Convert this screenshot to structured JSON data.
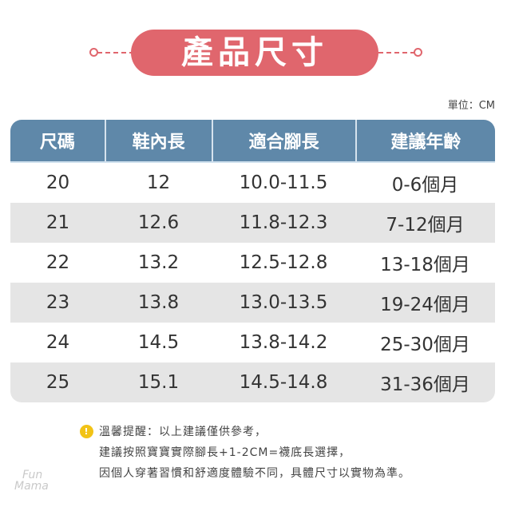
{
  "title": "產品尺寸",
  "unit": "單位：CM",
  "colors": {
    "title": "#e0666d",
    "header": "#5f88a9",
    "alt_row": "#e5e5e5",
    "warning_icon": "#f2c316"
  },
  "table": {
    "headers": [
      "尺碼",
      "鞋內長",
      "適合腳長",
      "建議年齡"
    ],
    "rows": [
      [
        "20",
        "12",
        "10.0-11.5",
        "0-6個月"
      ],
      [
        "21",
        "12.6",
        "11.8-12.3",
        "7-12個月"
      ],
      [
        "22",
        "13.2",
        "12.5-12.8",
        "13-18個月"
      ],
      [
        "23",
        "13.8",
        "13.0-13.5",
        "19-24個月"
      ],
      [
        "24",
        "14.5",
        "13.8-14.2",
        "25-30個月"
      ],
      [
        "25",
        "15.1",
        "14.5-14.8",
        "31-36個月"
      ]
    ]
  },
  "notes": {
    "icon": "warning-icon",
    "lines": [
      "溫馨提醒：以上建議僅供參考，",
      "建議按照寶寶實際腳長+1-2CM=襪底長選擇，",
      "因個人穿著習慣和舒適度體驗不同，具體尺寸以實物為準。"
    ]
  },
  "logo": {
    "line1": "Fun",
    "line2": "Mama"
  }
}
